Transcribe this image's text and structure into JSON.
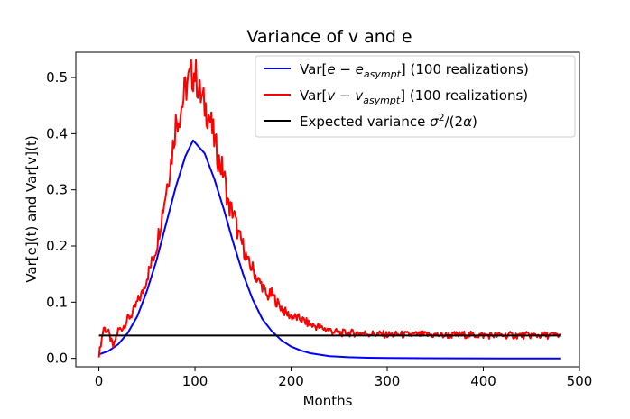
{
  "chart_data": {
    "type": "line",
    "title": "Variance of v and e",
    "xlabel": "Months",
    "ylabel": "Var[e](t) and Var[v](t)",
    "xlim": [
      -24,
      500
    ],
    "ylim": [
      -0.015,
      0.545
    ],
    "xticks": [
      0,
      100,
      200,
      300,
      400,
      500
    ],
    "yticks": [
      0.0,
      0.1,
      0.2,
      0.3,
      0.4,
      0.5
    ],
    "xtick_labels": [
      "0",
      "100",
      "200",
      "300",
      "400",
      "500"
    ],
    "ytick_labels": [
      "0.0",
      "0.1",
      "0.2",
      "0.3",
      "0.4",
      "0.5"
    ],
    "legend_position": "top-right",
    "grid": false,
    "series": [
      {
        "name": "Var[e − e_asympt] (100 realizations)",
        "legend_parts": [
          "Var[",
          "e",
          " − ",
          "e",
          "asympt",
          "] (100 realizations)"
        ],
        "color": "#0000ff",
        "x": [
          0,
          10,
          20,
          30,
          40,
          50,
          60,
          70,
          80,
          90,
          98,
          110,
          120,
          130,
          140,
          150,
          160,
          170,
          180,
          190,
          200,
          210,
          220,
          240,
          260,
          280,
          300,
          340,
          380,
          420,
          480
        ],
        "values": [
          0.007,
          0.013,
          0.025,
          0.045,
          0.075,
          0.12,
          0.175,
          0.24,
          0.305,
          0.36,
          0.388,
          0.365,
          0.32,
          0.265,
          0.205,
          0.15,
          0.105,
          0.07,
          0.048,
          0.032,
          0.021,
          0.014,
          0.009,
          0.004,
          0.002,
          0.001,
          0.0005,
          0.0002,
          0.0001,
          0.0,
          0.0
        ]
      },
      {
        "name": "Var[v − v_asympt] (100 realizations)",
        "legend_parts": [
          "Var[",
          "v",
          " − ",
          "v",
          "asympt",
          "] (100 realizations)"
        ],
        "color": "#ff0000",
        "x": [
          0,
          5,
          10,
          15,
          20,
          25,
          30,
          35,
          40,
          45,
          50,
          55,
          60,
          65,
          70,
          75,
          80,
          85,
          90,
          95,
          100,
          105,
          110,
          115,
          120,
          125,
          130,
          135,
          140,
          145,
          150,
          155,
          160,
          165,
          170,
          175,
          180,
          185,
          190,
          195,
          200,
          210,
          220,
          230,
          240,
          250,
          260,
          270,
          280,
          290,
          300,
          320,
          340,
          360,
          380,
          400,
          420,
          440,
          460,
          480
        ],
        "values": [
          0.006,
          0.055,
          0.045,
          0.02,
          0.05,
          0.055,
          0.07,
          0.08,
          0.1,
          0.115,
          0.145,
          0.17,
          0.2,
          0.25,
          0.3,
          0.35,
          0.42,
          0.44,
          0.48,
          0.5,
          0.51,
          0.47,
          0.45,
          0.43,
          0.39,
          0.35,
          0.33,
          0.27,
          0.26,
          0.22,
          0.2,
          0.17,
          0.16,
          0.14,
          0.13,
          0.11,
          0.115,
          0.1,
          0.09,
          0.08,
          0.075,
          0.07,
          0.06,
          0.055,
          0.05,
          0.045,
          0.045,
          0.045,
          0.044,
          0.043,
          0.042,
          0.042,
          0.042,
          0.041,
          0.042,
          0.041,
          0.041,
          0.041,
          0.041,
          0.041
        ]
      },
      {
        "name": "Expected variance σ²/(2α)",
        "legend_parts": [
          "Expected variance ",
          "σ",
          "2",
          "/(2",
          "α",
          ")"
        ],
        "color": "#000000",
        "x": [
          0,
          480
        ],
        "values": [
          0.0405,
          0.0405
        ]
      }
    ]
  },
  "colors": {
    "background": "#ffffff",
    "axes": "#000000"
  }
}
